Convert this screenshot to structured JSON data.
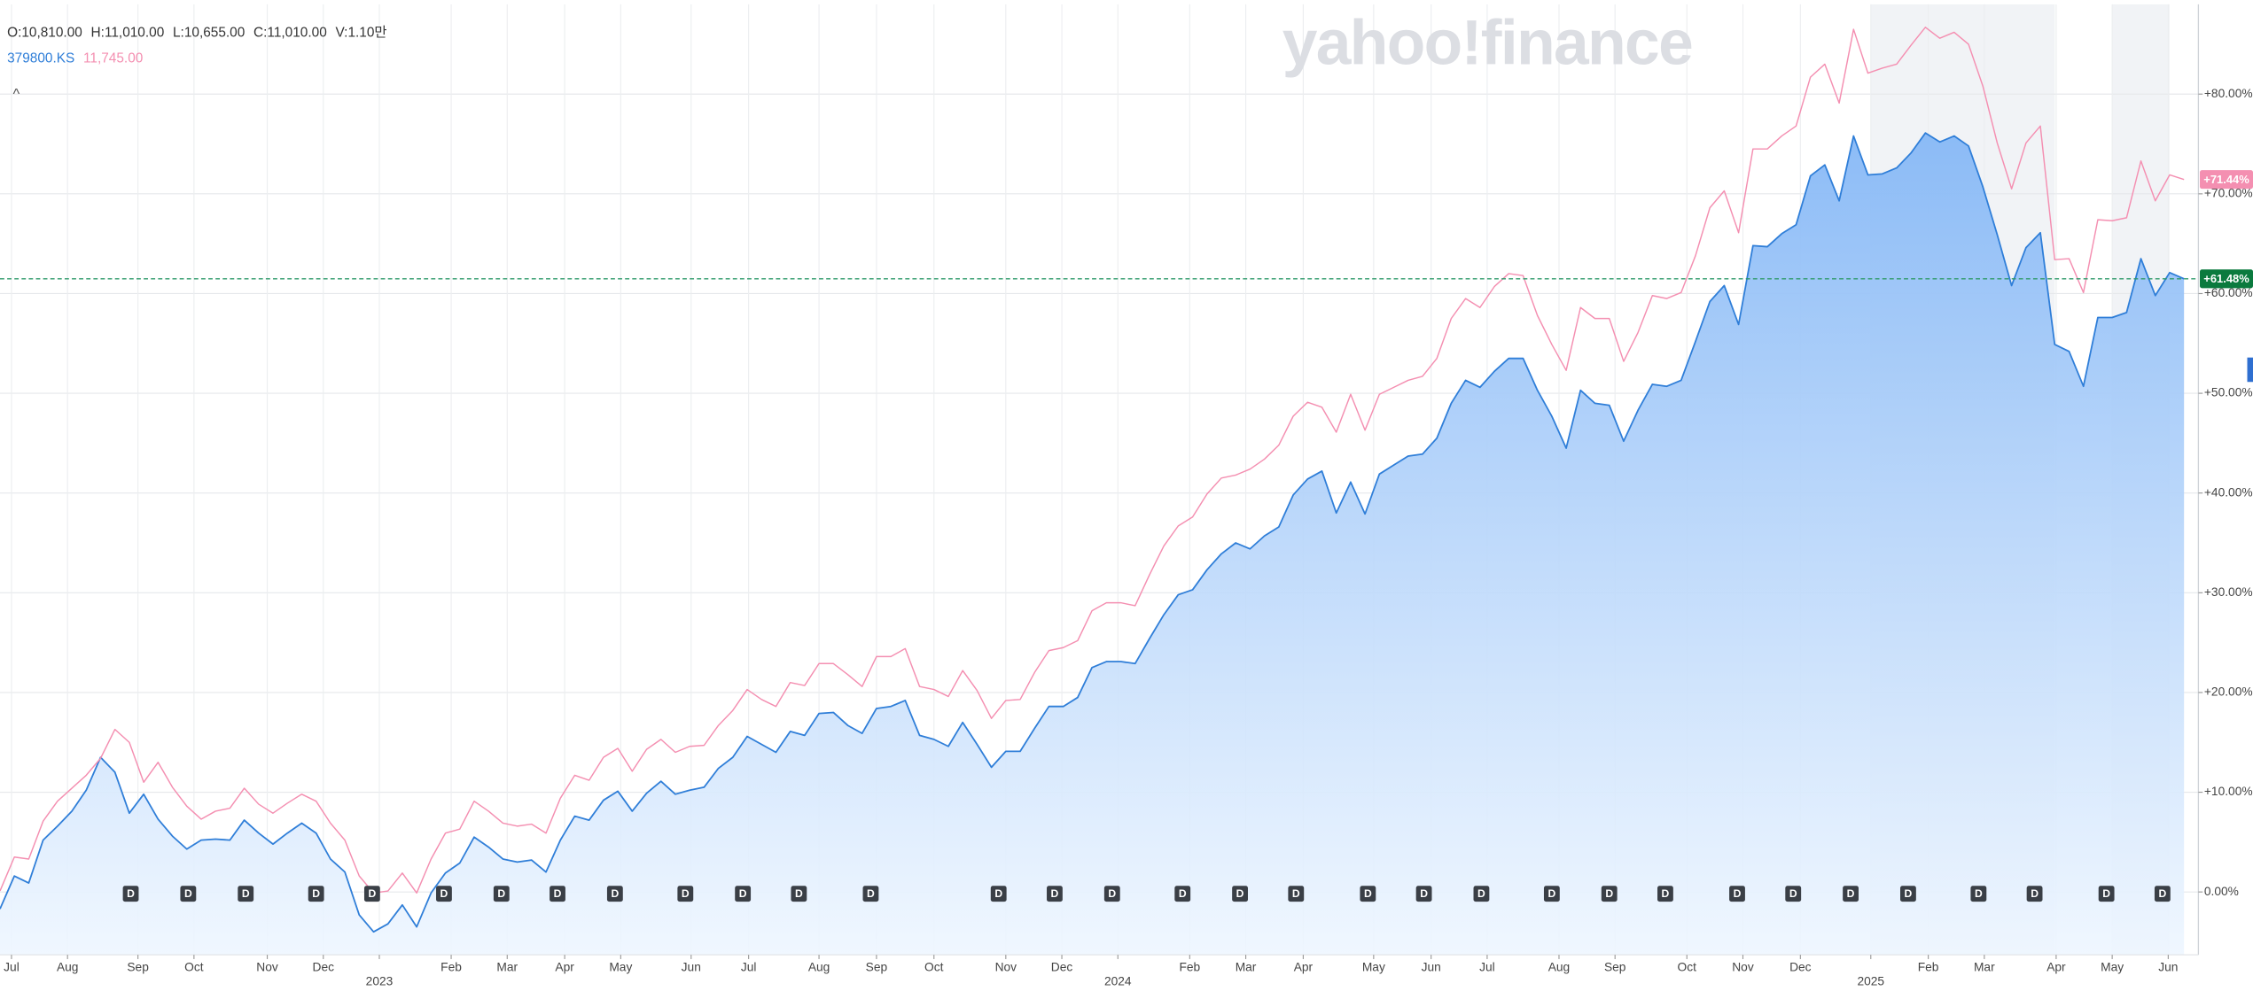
{
  "chart_data": {
    "type": "line",
    "header": [
      "O:10,810.00",
      "H:11,010.00",
      "L:10,655.00",
      "C:11,010.00",
      "V:1.10만"
    ],
    "watermark": "yahoo!finance",
    "collapse": "^",
    "series": [
      {
        "name": "379800.KS",
        "color": "#2f7ed8",
        "fill": true,
        "end_label": "+61.48%",
        "values": [
          -1.7,
          1.6,
          0.9,
          5.2,
          6.6,
          8.1,
          10.2,
          13.5,
          12.0,
          7.9,
          9.8,
          7.3,
          5.6,
          4.3,
          5.2,
          5.3,
          5.2,
          7.2,
          5.9,
          4.8,
          5.9,
          6.9,
          5.9,
          3.3,
          2.0,
          -2.3,
          -4.0,
          -3.2,
          -1.3,
          -3.5,
          -0.1,
          1.9,
          2.9,
          5.5,
          4.5,
          3.3,
          3.0,
          3.2,
          2.0,
          5.2,
          7.6,
          7.2,
          9.2,
          10.1,
          8.1,
          9.9,
          11.1,
          9.8,
          10.2,
          10.5,
          12.4,
          13.5,
          15.6,
          14.8,
          14.0,
          16.1,
          15.7,
          17.9,
          18.0,
          16.7,
          15.9,
          18.4,
          18.6,
          19.2,
          15.7,
          15.3,
          14.6,
          17.0,
          14.8,
          12.5,
          14.1,
          14.1,
          16.4,
          18.6,
          18.6,
          19.5,
          22.5,
          23.1,
          23.1,
          22.9,
          25.4,
          27.8,
          29.8,
          30.3,
          32.3,
          33.9,
          35.0,
          34.4,
          35.7,
          36.6,
          39.8,
          41.4,
          42.2,
          38.0,
          41.1,
          37.9,
          41.9,
          42.8,
          43.7,
          43.9,
          45.5,
          49.0,
          51.3,
          50.6,
          52.2,
          53.5,
          53.5,
          50.3,
          47.7,
          44.5,
          50.3,
          49.0,
          48.8,
          45.2,
          48.3,
          50.9,
          50.7,
          51.3,
          55.2,
          59.2,
          60.8,
          56.9,
          64.8,
          64.7,
          66.0,
          66.9,
          71.8,
          72.9,
          69.3,
          75.8,
          71.9,
          72.0,
          72.6,
          74.1,
          76.1,
          75.2,
          75.8,
          74.8,
          70.7,
          65.9,
          60.8,
          64.6,
          66.1,
          54.9,
          54.2,
          50.7,
          57.6,
          57.6,
          58.1,
          63.5,
          59.8,
          62.1,
          61.48
        ]
      },
      {
        "name": "11,745.00",
        "color": "#f48fb1",
        "fill": false,
        "end_label": "+71.44%",
        "values": [
          0.1,
          3.5,
          3.3,
          7.1,
          9.1,
          10.4,
          11.7,
          13.4,
          16.3,
          15.0,
          11.0,
          13.0,
          10.5,
          8.6,
          7.3,
          8.1,
          8.4,
          10.4,
          8.8,
          7.9,
          8.9,
          9.8,
          9.1,
          6.9,
          5.2,
          1.6,
          -0.1,
          0.1,
          1.9,
          -0.1,
          3.3,
          5.9,
          6.3,
          9.1,
          8.1,
          6.9,
          6.6,
          6.8,
          5.9,
          9.4,
          11.7,
          11.2,
          13.5,
          14.4,
          12.1,
          14.3,
          15.3,
          14.0,
          14.6,
          14.7,
          16.7,
          18.2,
          20.3,
          19.3,
          18.6,
          21.0,
          20.7,
          22.9,
          22.9,
          21.8,
          20.6,
          23.6,
          23.6,
          24.4,
          20.6,
          20.3,
          19.6,
          22.2,
          20.2,
          17.4,
          19.2,
          19.3,
          22.0,
          24.2,
          24.5,
          25.2,
          28.2,
          29.0,
          29.0,
          28.7,
          31.8,
          34.7,
          36.7,
          37.6,
          39.9,
          41.5,
          41.8,
          42.4,
          43.4,
          44.8,
          47.7,
          49.1,
          48.6,
          46.1,
          49.9,
          46.3,
          49.9,
          50.6,
          51.3,
          51.7,
          53.5,
          57.5,
          59.5,
          58.6,
          60.7,
          62.0,
          61.8,
          57.8,
          54.9,
          52.3,
          58.6,
          57.5,
          57.5,
          53.2,
          56.1,
          59.8,
          59.5,
          60.1,
          63.8,
          68.6,
          70.3,
          66.1,
          74.5,
          74.5,
          75.8,
          76.8,
          81.7,
          83.0,
          79.1,
          86.5,
          82.1,
          82.6,
          83.0,
          84.9,
          86.7,
          85.6,
          86.2,
          85.0,
          80.8,
          75.1,
          70.5,
          75.1,
          76.8,
          63.4,
          63.5,
          60.1,
          67.4,
          67.3,
          67.6,
          73.3,
          69.3,
          71.9,
          71.44
        ]
      }
    ],
    "xlim": [
      0,
      153
    ],
    "xticks": [
      {
        "value": 0.8,
        "label": "Jul"
      },
      {
        "value": 4.7,
        "label": "Aug"
      },
      {
        "value": 9.6,
        "label": "Sep"
      },
      {
        "value": 13.5,
        "label": "Oct"
      },
      {
        "value": 18.6,
        "label": "Nov"
      },
      {
        "value": 22.5,
        "label": "Dec"
      },
      {
        "value": 26.4,
        "label": "2023"
      },
      {
        "value": 31.4,
        "label": "Feb"
      },
      {
        "value": 35.3,
        "label": "Mar"
      },
      {
        "value": 39.3,
        "label": "Apr"
      },
      {
        "value": 43.2,
        "label": "May"
      },
      {
        "value": 48.1,
        "label": "Jun"
      },
      {
        "value": 52.1,
        "label": "Jul"
      },
      {
        "value": 57.0,
        "label": "Aug"
      },
      {
        "value": 61.0,
        "label": "Sep"
      },
      {
        "value": 65.0,
        "label": "Oct"
      },
      {
        "value": 70.0,
        "label": "Nov"
      },
      {
        "value": 73.9,
        "label": "Dec"
      },
      {
        "value": 77.8,
        "label": "2024"
      },
      {
        "value": 82.8,
        "label": "Feb"
      },
      {
        "value": 86.7,
        "label": "Mar"
      },
      {
        "value": 90.7,
        "label": "Apr"
      },
      {
        "value": 95.6,
        "label": "May"
      },
      {
        "value": 99.6,
        "label": "Jun"
      },
      {
        "value": 103.5,
        "label": "Jul"
      },
      {
        "value": 108.5,
        "label": "Aug"
      },
      {
        "value": 112.4,
        "label": "Sep"
      },
      {
        "value": 117.4,
        "label": "Oct"
      },
      {
        "value": 121.3,
        "label": "Nov"
      },
      {
        "value": 125.3,
        "label": "Dec"
      },
      {
        "value": 130.2,
        "label": "2025"
      },
      {
        "value": 134.2,
        "label": "Feb"
      },
      {
        "value": 138.1,
        "label": "Mar"
      },
      {
        "value": 143.1,
        "label": "Apr"
      },
      {
        "value": 147.0,
        "label": "May"
      },
      {
        "value": 150.9,
        "label": "Jun"
      }
    ],
    "ylim": [
      -6.3,
      89.0
    ],
    "yticks": [
      {
        "value": 0,
        "label": "0.00%"
      },
      {
        "value": 10,
        "label": "+10.00%"
      },
      {
        "value": 20,
        "label": "+20.00%"
      },
      {
        "value": 30,
        "label": "+30.00%"
      },
      {
        "value": 40,
        "label": "+40.00%"
      },
      {
        "value": 50,
        "label": "+50.00%"
      },
      {
        "value": 60,
        "label": "+60.00%"
      },
      {
        "value": 70,
        "label": "+70.00%"
      },
      {
        "value": 80,
        "label": "+80.00%"
      }
    ],
    "grid": true,
    "highlight_ranges": [
      [
        130.2,
        143.0
      ],
      [
        147.0,
        151.0
      ]
    ],
    "dividends": {
      "label": "D",
      "x": [
        9.1,
        13.1,
        17.1,
        22.0,
        25.9,
        30.9,
        34.9,
        38.8,
        42.8,
        47.7,
        51.7,
        55.6,
        60.6,
        69.5,
        73.4,
        77.4,
        82.3,
        86.3,
        90.2,
        95.2,
        99.1,
        103.1,
        108.0,
        112.0,
        115.9,
        120.9,
        124.8,
        128.8,
        132.8,
        137.7,
        141.6,
        146.6,
        150.5
      ]
    }
  }
}
